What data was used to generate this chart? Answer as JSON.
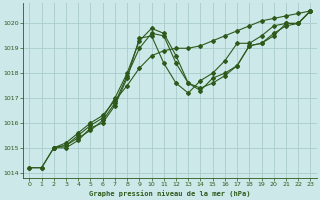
{
  "title": "Graphe pression niveau de la mer (hPa)",
  "bg_color": "#cce8e8",
  "grid_color": "#aacccc",
  "line_color": "#2d5a1b",
  "xlim": [
    -0.5,
    23.5
  ],
  "ylim": [
    1013.8,
    1020.8
  ],
  "yticks": [
    1014,
    1015,
    1016,
    1017,
    1018,
    1019,
    1020
  ],
  "xticks": [
    0,
    1,
    2,
    3,
    4,
    5,
    6,
    7,
    8,
    9,
    10,
    11,
    12,
    13,
    14,
    15,
    16,
    17,
    18,
    19,
    20,
    21,
    22,
    23
  ],
  "series1_x": [
    0,
    1,
    2,
    3,
    4,
    5,
    6,
    7,
    8,
    9,
    10,
    11,
    12,
    13,
    14,
    15,
    16,
    17,
    18,
    19,
    20,
    21,
    22,
    23
  ],
  "series1_y": [
    1014.2,
    1014.2,
    1015.0,
    1015.1,
    1015.5,
    1015.9,
    1016.2,
    1017.0,
    1018.0,
    1019.3,
    1019.8,
    1019.6,
    1018.7,
    1017.6,
    1017.3,
    1017.8,
    1018.0,
    1018.3,
    1019.1,
    1019.2,
    1019.5,
    1020.0,
    1020.0,
    1020.5
  ],
  "series2_x": [
    2,
    3,
    4,
    5,
    6,
    7,
    8,
    9,
    10,
    11,
    12,
    13,
    14,
    15,
    16,
    17,
    18,
    19,
    20,
    21,
    22,
    23
  ],
  "series2_y": [
    1015.0,
    1015.0,
    1015.3,
    1015.8,
    1016.0,
    1016.7,
    1017.8,
    1019.4,
    1019.5,
    1018.4,
    1017.6,
    1017.2,
    1017.7,
    1018.0,
    1018.5,
    1019.2,
    1019.2,
    1019.5,
    1019.9,
    1020.0,
    1020.0,
    1020.5
  ],
  "series3_x": [
    2,
    3,
    4,
    5,
    6,
    7,
    8,
    9,
    10,
    11,
    12,
    13,
    14,
    15,
    16,
    17,
    18,
    19,
    20,
    21,
    22,
    23
  ],
  "series3_y": [
    1015.0,
    1015.1,
    1015.4,
    1015.7,
    1016.1,
    1016.8,
    1017.9,
    1019.0,
    1019.6,
    1019.5,
    1018.4,
    1017.6,
    1017.4,
    1017.6,
    1017.9,
    1018.3,
    1019.1,
    1019.2,
    1019.6,
    1019.9,
    1020.0,
    1020.5
  ],
  "series4_x": [
    0,
    1,
    2,
    3,
    4,
    5,
    6,
    7,
    8,
    9,
    10,
    11,
    12,
    13,
    14,
    15,
    16,
    17,
    18,
    19,
    20,
    21,
    22,
    23
  ],
  "series4_y": [
    1014.2,
    1014.2,
    1015.0,
    1015.2,
    1015.6,
    1016.0,
    1016.3,
    1016.9,
    1017.5,
    1018.2,
    1018.7,
    1018.9,
    1019.0,
    1019.0,
    1019.1,
    1019.3,
    1019.5,
    1019.7,
    1019.9,
    1020.1,
    1020.2,
    1020.3,
    1020.4,
    1020.5
  ]
}
